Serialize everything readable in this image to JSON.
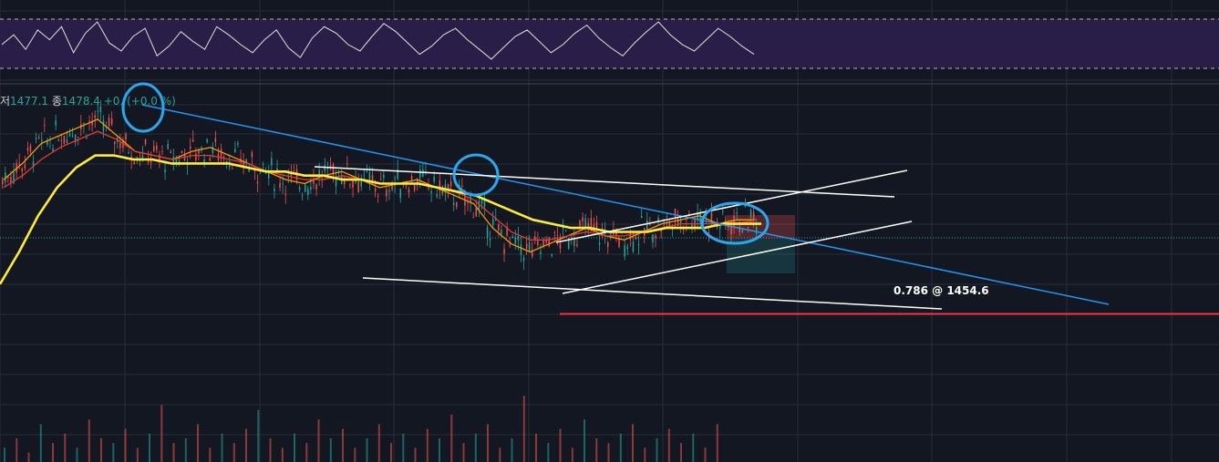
{
  "legend": {
    "low_key": "저",
    "low_value": "1477.1",
    "close_key": "종",
    "close_value": "1478.4",
    "change_value": "+0.",
    "change_pct": "(+0.0 %)"
  },
  "fib": {
    "label": "0.786 @ 1454.6",
    "level": 1454.6,
    "color": "#f23645"
  },
  "colors": {
    "background": "#131722",
    "grid": "#2a2e39",
    "up": "#26a69a",
    "down": "#ef5350",
    "ema_short": "#ff9800",
    "ema_mid": "#e53935",
    "ema_long": "#ffeb3b",
    "trendline": "#2196f3",
    "channel": "#ffffff",
    "rsi_band": "#2a1f4a",
    "rsi_line": "#e0e0e0",
    "annotation_circles": "#29a8f0"
  },
  "chart_data": [
    {
      "type": "line",
      "panel": "oscillator",
      "band": "shaded upper/lower band with dashed boundary lines",
      "series": [
        {
          "values": [
            52,
            58,
            49,
            61,
            55,
            63,
            47,
            59,
            66,
            53,
            48,
            57,
            62,
            45,
            51,
            60,
            54,
            49,
            63,
            58,
            52,
            47,
            55,
            61,
            50,
            44,
            56,
            63,
            59,
            52,
            48,
            57,
            65,
            60,
            53,
            46,
            51,
            58,
            62,
            55,
            49,
            43,
            50,
            57,
            61,
            54,
            47,
            52,
            59,
            64,
            56,
            50,
            45,
            53,
            60,
            66,
            58,
            52,
            48,
            55,
            62,
            57,
            51,
            46
          ]
        }
      ]
    },
    {
      "type": "line",
      "panel": "price",
      "ylim": [
        1435,
        1510
      ],
      "series": [
        {
          "values": [
            1488,
            1492,
            1497,
            1499,
            1501,
            1503,
            1499,
            1495,
            1494,
            1493,
            1495,
            1496,
            1494,
            1492,
            1490,
            1488,
            1487,
            1489,
            1490,
            1488,
            1486,
            1487,
            1488,
            1486,
            1484,
            1482,
            1476,
            1472,
            1470,
            1472,
            1474,
            1476,
            1474,
            1473,
            1475,
            1477,
            1478,
            1479,
            1477,
            1478,
            1478
          ]
        },
        {
          "values": [
            1486,
            1489,
            1493,
            1496,
            1498,
            1500,
            1498,
            1495,
            1494,
            1493,
            1494,
            1494,
            1493,
            1492,
            1490,
            1489,
            1488,
            1488,
            1489,
            1488,
            1487,
            1487,
            1487,
            1486,
            1485,
            1483,
            1479,
            1475,
            1473,
            1473,
            1474,
            1475,
            1474,
            1474,
            1475,
            1476,
            1477,
            1477,
            1477,
            1477,
            1478
          ]
        },
        {
          "values": [
            1462,
            1470,
            1479,
            1486,
            1491,
            1494,
            1494,
            1493,
            1493,
            1492,
            1492,
            1492,
            1492,
            1491,
            1490,
            1490,
            1489,
            1489,
            1488,
            1488,
            1487,
            1487,
            1487,
            1486,
            1485,
            1484,
            1482,
            1480,
            1478,
            1477,
            1476,
            1476,
            1475,
            1475,
            1475,
            1476,
            1476,
            1476,
            1477,
            1477,
            1477
          ]
        }
      ],
      "horizontal_line": 1454.6,
      "annotations": [
        "descending trendline",
        "ascending channel",
        "converging range lines",
        "circled swing highs",
        "long position risk/reward box"
      ]
    },
    {
      "type": "bar",
      "panel": "volume",
      "values": [
        3,
        5,
        2,
        8,
        4,
        6,
        3,
        9,
        5,
        4,
        7,
        3,
        6,
        12,
        4,
        5,
        8,
        3,
        6,
        4,
        7,
        11,
        5,
        3,
        6,
        4,
        9,
        5,
        7,
        3,
        5,
        8,
        4,
        6,
        3,
        7,
        5,
        10,
        4,
        6,
        8,
        3,
        5,
        14,
        6,
        4,
        7,
        3,
        9,
        5,
        4,
        6,
        8,
        3,
        5,
        7,
        4,
        6,
        3,
        8
      ]
    }
  ]
}
